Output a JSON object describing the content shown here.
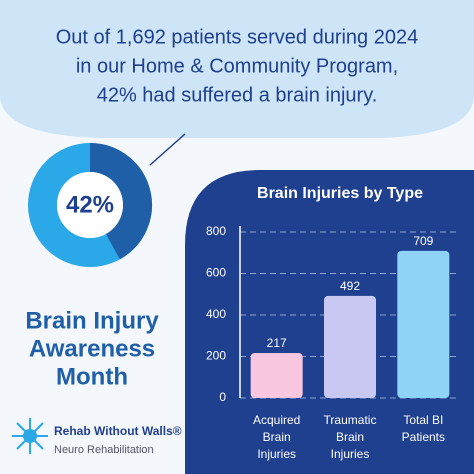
{
  "headline": [
    "Out of 1,692 patients served during 2024",
    "in our Home & Community Program,",
    "42% had suffered a brain injury."
  ],
  "awareness_title": [
    "Brain Injury",
    "Awareness",
    "Month"
  ],
  "logo": {
    "name": "Rehab Without Walls®",
    "subtitle": "Neuro Rehabilitation"
  },
  "chart_data": [
    {
      "type": "donut",
      "values": [
        42
      ],
      "value_labels": [
        "42%"
      ],
      "color": "#1f5fa8",
      "track_color": "#2aa8e8"
    },
    {
      "type": "bar",
      "title": "Brain Injuries by Type",
      "categories": [
        [
          "Acquired",
          "Brain",
          "Injuries"
        ],
        [
          "Traumatic",
          "Brain",
          "Injuries"
        ],
        [
          "Total BI",
          "Patients"
        ]
      ],
      "values": [
        217,
        492,
        709
      ],
      "colors": [
        "#f9c6e0",
        "#c8c8f2",
        "#8fd3f7"
      ],
      "ylim": [
        0,
        800
      ],
      "yticks": [
        0,
        200,
        400,
        600,
        800
      ],
      "grid": true
    }
  ]
}
